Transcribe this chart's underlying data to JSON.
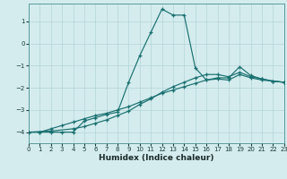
{
  "xlabel": "Humidex (Indice chaleur)",
  "bg_color": "#d4ecee",
  "grid_color": "#b5d5d8",
  "line_color": "#1a7070",
  "xlim": [
    0,
    23
  ],
  "ylim": [
    -4.5,
    1.8
  ],
  "yticks": [
    -4,
    -3,
    -2,
    -1,
    0,
    1
  ],
  "xticks": [
    0,
    1,
    2,
    3,
    4,
    5,
    6,
    7,
    8,
    9,
    10,
    11,
    12,
    13,
    14,
    15,
    16,
    17,
    18,
    19,
    20,
    21,
    22,
    23
  ],
  "line1_x": [
    0,
    1,
    2,
    3,
    4,
    5,
    6,
    7,
    8,
    9,
    10,
    11,
    12,
    13,
    14,
    15,
    16,
    17,
    18,
    19,
    20,
    21,
    22,
    23
  ],
  "line1_y": [
    -4.0,
    -4.0,
    -4.0,
    -4.0,
    -4.0,
    -3.5,
    -3.35,
    -3.2,
    -3.1,
    -1.75,
    -0.55,
    0.5,
    1.55,
    1.28,
    1.28,
    -1.1,
    -1.65,
    -1.55,
    -1.55,
    -1.05,
    -1.45,
    -1.6,
    -1.7,
    -1.75
  ],
  "line2_x": [
    0,
    1,
    2,
    3,
    4,
    5,
    6,
    7,
    8,
    9,
    10,
    11,
    12,
    13,
    14,
    15,
    16,
    17,
    18,
    19,
    20,
    21,
    22,
    23
  ],
  "line2_y": [
    -4.0,
    -4.0,
    -3.85,
    -3.7,
    -3.55,
    -3.4,
    -3.25,
    -3.15,
    -3.0,
    -2.85,
    -2.65,
    -2.45,
    -2.25,
    -2.1,
    -1.95,
    -1.8,
    -1.65,
    -1.6,
    -1.65,
    -1.4,
    -1.55,
    -1.65,
    -1.7,
    -1.75
  ],
  "line3_x": [
    0,
    2,
    4,
    5,
    6,
    7,
    8,
    9,
    10,
    11,
    12,
    13,
    14,
    15,
    16,
    17,
    18,
    19,
    20,
    21,
    22,
    23
  ],
  "line3_y": [
    -4.0,
    -3.95,
    -3.85,
    -3.75,
    -3.6,
    -3.45,
    -3.25,
    -3.05,
    -2.75,
    -2.5,
    -2.2,
    -1.95,
    -1.75,
    -1.55,
    -1.4,
    -1.4,
    -1.5,
    -1.3,
    -1.5,
    -1.6,
    -1.7,
    -1.75
  ]
}
